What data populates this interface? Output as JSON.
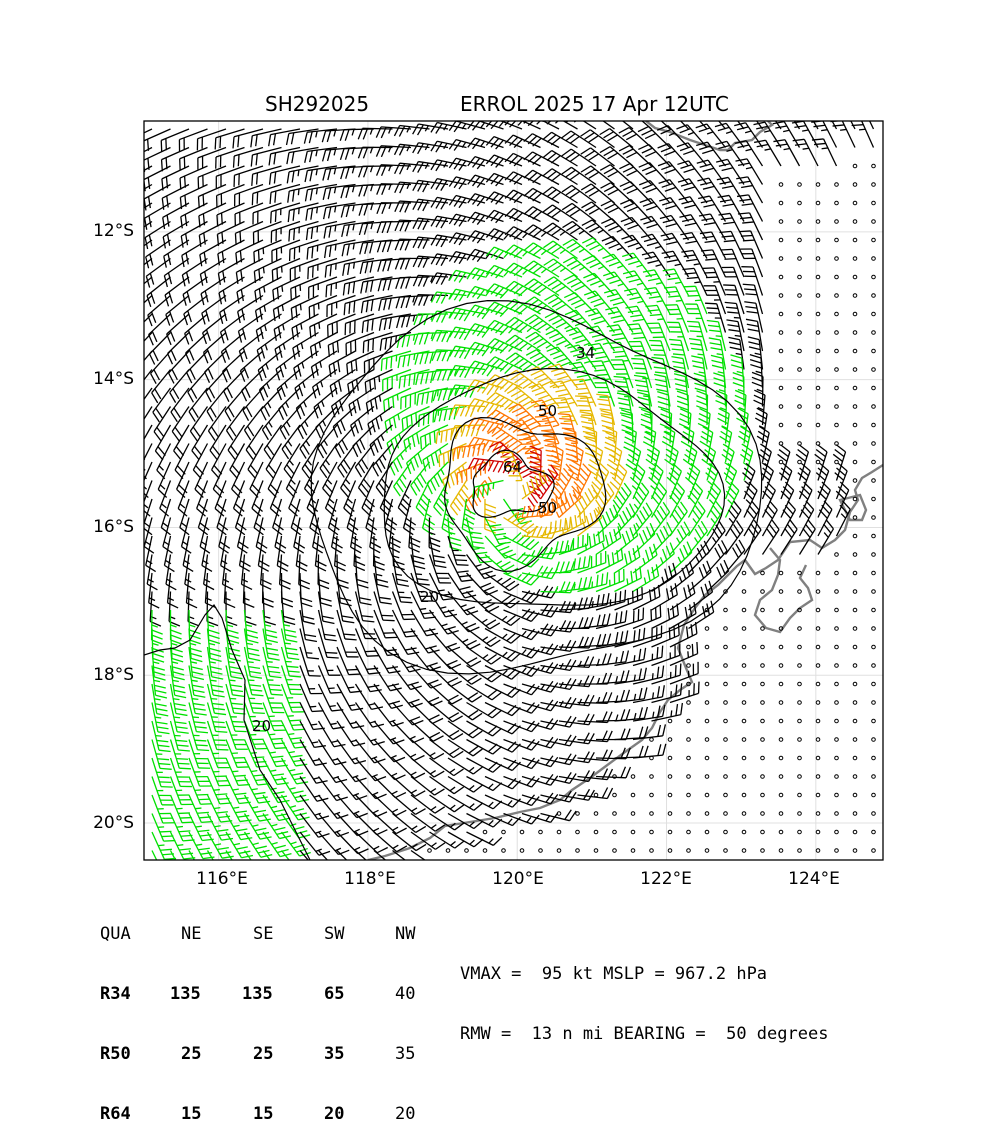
{
  "title": {
    "left": "SH292025",
    "right": "ERROL 2025 17 Apr 12UTC"
  },
  "axes": {
    "x_ticks": [
      "116°E",
      "118°E",
      "120°E",
      "122°E",
      "124°E"
    ],
    "y_ticks": [
      "12°S",
      "14°S",
      "16°S",
      "18°S",
      "20°S"
    ],
    "lon_range": [
      115.0,
      124.9
    ],
    "lat_range": [
      -20.5,
      -10.5
    ],
    "grid": true
  },
  "storm": {
    "center_lon": 119.9,
    "center_lat": -15.5,
    "rmw_nmi": 13
  },
  "contour_labels": [
    "34",
    "50",
    "64",
    "50",
    "20",
    "20"
  ],
  "colors": {
    "lt34": "#000000",
    "r34": "#00e000",
    "r50": "#e6b800",
    "r64": "#ff7700",
    "r95": "#d00000",
    "coast": "#808080",
    "grid": "#e0e0e0"
  },
  "radii_table": {
    "header": [
      "QUA",
      "NE",
      "SE",
      "SW",
      "NW"
    ],
    "rows": [
      {
        "label": "R34",
        "values": [
          "135",
          "135",
          "65",
          "40"
        ]
      },
      {
        "label": "R50",
        "values": [
          "25",
          "25",
          "35",
          "35"
        ]
      },
      {
        "label": "R64",
        "values": [
          "15",
          "15",
          "20",
          "20"
        ]
      }
    ]
  },
  "summary": {
    "line1": "VMAX =  95 kt MSLP = 967.2 hPa",
    "line2": "RMW =  13 n mi BEARING =  50 degrees"
  }
}
